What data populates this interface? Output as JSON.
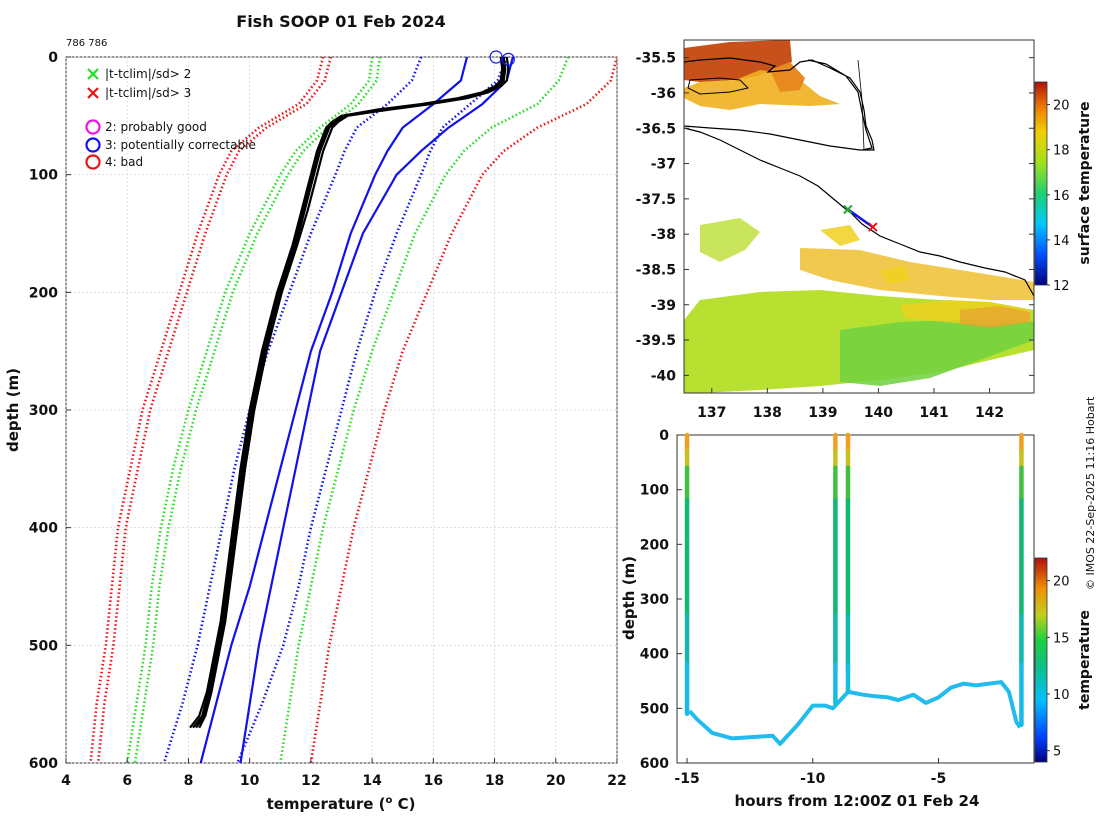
{
  "header": {
    "title": "Fish SOOP 01 Feb 2024",
    "ids": "786 786",
    "copyright": "© IMOS 22-Sep-2025 11:16 Hobart"
  },
  "colors": {
    "green": "#22dd22",
    "red": "#ee1111",
    "blue": "#1111ee",
    "magenta": "#ee11ee",
    "black": "#000000"
  },
  "chart_data": [
    {
      "type": "line",
      "name": "profile",
      "xlabel": "temperature (",
      "xlabel_sup": "o",
      "xlabel_end": " C)",
      "ylabel": "depth (m)",
      "xlim": [
        4,
        22
      ],
      "ylim": [
        600,
        0
      ],
      "xticks": [
        4,
        6,
        8,
        10,
        12,
        14,
        16,
        18,
        20,
        22
      ],
      "yticks": [
        0,
        100,
        200,
        300,
        400,
        500,
        600
      ],
      "legend": [
        {
          "label": "|t-tclim|/sd> 2",
          "marker": "x",
          "color": "#22dd22"
        },
        {
          "label": "|t-tclim|/sd> 3",
          "marker": "x",
          "color": "#ee1111"
        },
        {
          "label": "2: probably good",
          "marker": "o",
          "color": "#ee11ee"
        },
        {
          "label": "3: potentially correctable",
          "marker": "o",
          "color": "#1111ee"
        },
        {
          "label": "4: bad",
          "marker": "o",
          "color": "#ee1111"
        }
      ],
      "depth_levels": [
        0,
        20,
        40,
        60,
        80,
        100,
        150,
        200,
        250,
        300,
        350,
        400,
        450,
        500,
        550,
        600
      ],
      "envelopes": [
        {
          "name": "clim -3sd a",
          "style": "dotted",
          "color": "#ee1111",
          "temps": [
            12.4,
            12.2,
            11.6,
            10.3,
            9.4,
            9.0,
            8.3,
            7.7,
            7.1,
            6.5,
            6.1,
            5.7,
            5.5,
            5.3,
            5.0,
            4.8
          ]
        },
        {
          "name": "clim -3sd b",
          "style": "dotted",
          "color": "#ee1111",
          "temps": null
        },
        {
          "name": "clim -2sd a",
          "style": "dotted",
          "color": "#22dd22",
          "temps": [
            14.0,
            13.9,
            13.3,
            12.3,
            11.5,
            11.0,
            10.0,
            9.2,
            8.6,
            8.0,
            7.5,
            7.1,
            6.8,
            6.6,
            6.3,
            6.0
          ]
        },
        {
          "name": "clim -2sd b",
          "style": "dotted",
          "color": "#22dd22",
          "temps": null
        },
        {
          "name": "clim mean dotted",
          "style": "dotted",
          "color": "#1111ee",
          "temps": [
            15.6,
            15.3,
            14.5,
            13.5,
            13.1,
            12.8,
            12.0,
            11.3,
            10.6,
            10.0,
            9.5,
            9.1,
            8.7,
            8.3,
            7.8,
            7.2
          ]
        },
        {
          "name": "clim mean solid a",
          "style": "solid",
          "color": "#1111ee",
          "temps": [
            17.1,
            16.9,
            16.0,
            15.0,
            14.5,
            14.1,
            13.3,
            12.7,
            12.0,
            11.5,
            11.0,
            10.5,
            10.0,
            9.4,
            8.9,
            8.4
          ]
        },
        {
          "name": "clim mean solid b",
          "style": "solid",
          "color": "#1111ee",
          "temps": [
            18.6,
            18.4,
            17.6,
            16.5,
            15.6,
            14.8,
            13.7,
            13.0,
            12.3,
            11.9,
            11.5,
            11.1,
            10.7,
            10.3,
            10.0,
            9.7
          ]
        },
        {
          "name": "clim +2sd a",
          "style": "dotted",
          "color": "#1111ee",
          "temps": [
            18.4,
            18.1,
            17.2,
            16.3,
            15.9,
            15.6,
            14.8,
            14.1,
            13.5,
            13.0,
            12.5,
            12.0,
            11.6,
            11.1,
            10.4,
            9.6
          ]
        },
        {
          "name": "clim +2sd b",
          "style": "dotted",
          "color": "#22dd22",
          "temps": [
            20.4,
            20.1,
            19.4,
            17.9,
            17.0,
            16.4,
            15.4,
            14.7,
            14.0,
            13.4,
            12.9,
            12.4,
            12.0,
            11.6,
            11.3,
            11.0
          ]
        },
        {
          "name": "clim +3sd a",
          "style": "dotted",
          "color": "#ee1111",
          "temps": [
            22.0,
            21.8,
            21.0,
            19.4,
            18.3,
            17.6,
            16.6,
            15.8,
            15.0,
            14.4,
            13.9,
            13.4,
            13.0,
            12.6,
            12.3,
            12.0
          ]
        }
      ],
      "profiles_depth": [
        0,
        10,
        20,
        25,
        30,
        35,
        40,
        45,
        50,
        55,
        60,
        70,
        80,
        100,
        130,
        160,
        200,
        250,
        300,
        350,
        400,
        450,
        480,
        500,
        520,
        540,
        560,
        570
      ],
      "profiles": [
        {
          "name": "cast 1",
          "temps": [
            18.3,
            18.35,
            18.3,
            18.1,
            17.7,
            17.0,
            15.8,
            14.3,
            13.1,
            12.8,
            12.6,
            12.45,
            12.3,
            12.1,
            11.8,
            11.5,
            11.0,
            10.5,
            10.1,
            9.8,
            9.55,
            9.3,
            9.15,
            9.0,
            8.85,
            8.7,
            8.5,
            8.25
          ]
        },
        {
          "name": "cast 2",
          "temps": [
            18.2,
            18.25,
            18.2,
            18.0,
            17.6,
            16.8,
            15.6,
            14.1,
            13.0,
            12.7,
            12.5,
            12.35,
            12.2,
            12.0,
            11.7,
            11.4,
            10.9,
            10.4,
            10.0,
            9.7,
            9.45,
            9.2,
            9.05,
            8.9,
            8.75,
            8.6,
            8.35,
            8.05
          ]
        },
        {
          "name": "cast 3",
          "temps": [
            18.4,
            18.45,
            18.4,
            18.2,
            17.8,
            17.1,
            15.9,
            14.5,
            13.2,
            12.9,
            12.7,
            12.55,
            12.4,
            12.2,
            11.9,
            11.55,
            11.05,
            10.55,
            10.15,
            9.85,
            9.6,
            9.35,
            9.2,
            9.05,
            8.9,
            8.75,
            8.55,
            8.35
          ]
        },
        {
          "name": "cast 4",
          "temps": [
            18.3,
            18.3,
            18.25,
            18.05,
            17.65,
            16.9,
            15.7,
            14.2,
            13.05,
            12.75,
            12.55,
            12.4,
            12.25,
            12.05,
            11.75,
            11.45,
            10.95,
            10.45,
            10.05,
            9.75,
            9.5,
            9.25,
            9.1,
            8.95,
            8.8,
            8.65,
            8.45,
            8.15
          ]
        }
      ],
      "flag_markers": [
        {
          "temp": 18.05,
          "depth": 0,
          "color": "#1111ee"
        },
        {
          "temp": 18.45,
          "depth": 2,
          "color": "#1111ee"
        }
      ]
    },
    {
      "type": "heatmap",
      "name": "map",
      "xticks": [
        137,
        138,
        139,
        140,
        141,
        142
      ],
      "yticks": [
        -35.5,
        -36,
        -36.5,
        -37,
        -37.5,
        -38,
        -38.5,
        -39,
        -39.5,
        -40
      ],
      "xlim": [
        136.5,
        142.8
      ],
      "ylim": [
        -40.25,
        -35.25
      ],
      "colorbar_label": "surface temperature",
      "colorbar_ticks": [
        12,
        14,
        16,
        18,
        20
      ],
      "colorbar_range": [
        12,
        21
      ],
      "track": {
        "lon": [
          139.45,
          139.9
        ],
        "lat": [
          -37.65,
          -37.9
        ]
      }
    },
    {
      "type": "scatter",
      "name": "section",
      "xlabel": "hours from 12:00Z 01 Feb 24",
      "ylabel": "depth (m)",
      "xlim": [
        -15.4,
        -1.2
      ],
      "ylim": [
        600,
        0
      ],
      "xticks": [
        -15,
        -10,
        -5
      ],
      "yticks": [
        0,
        100,
        200,
        300,
        400,
        500,
        600
      ],
      "colorbar_label": "temperature",
      "colorbar_ticks": [
        5,
        10,
        15,
        20
      ],
      "colorbar_range": [
        4,
        22
      ],
      "casts": [
        {
          "t": -15.0,
          "bottom": 510
        },
        {
          "t": -9.1,
          "bottom": 490
        },
        {
          "t": -8.6,
          "bottom": 470
        },
        {
          "t": -1.7,
          "bottom": 530
        }
      ],
      "bottom_track": {
        "t": [
          -14.9,
          -14.6,
          -14.0,
          -13.2,
          -12.2,
          -11.6,
          -11.3,
          -11.1,
          -10.6,
          -10.0,
          -9.5,
          -9.2,
          -8.6,
          -8.0,
          -7.5,
          -7.0,
          -6.6,
          -6.0,
          -5.5,
          -5.0,
          -4.5,
          -4.0,
          -3.5,
          -3.0,
          -2.5,
          -2.2,
          -1.9,
          -1.75
        ],
        "depth": [
          505,
          520,
          545,
          555,
          552,
          550,
          565,
          555,
          530,
          495,
          495,
          500,
          470,
          475,
          478,
          480,
          485,
          475,
          490,
          480,
          462,
          455,
          458,
          455,
          452,
          470,
          525,
          535
        ]
      }
    }
  ]
}
